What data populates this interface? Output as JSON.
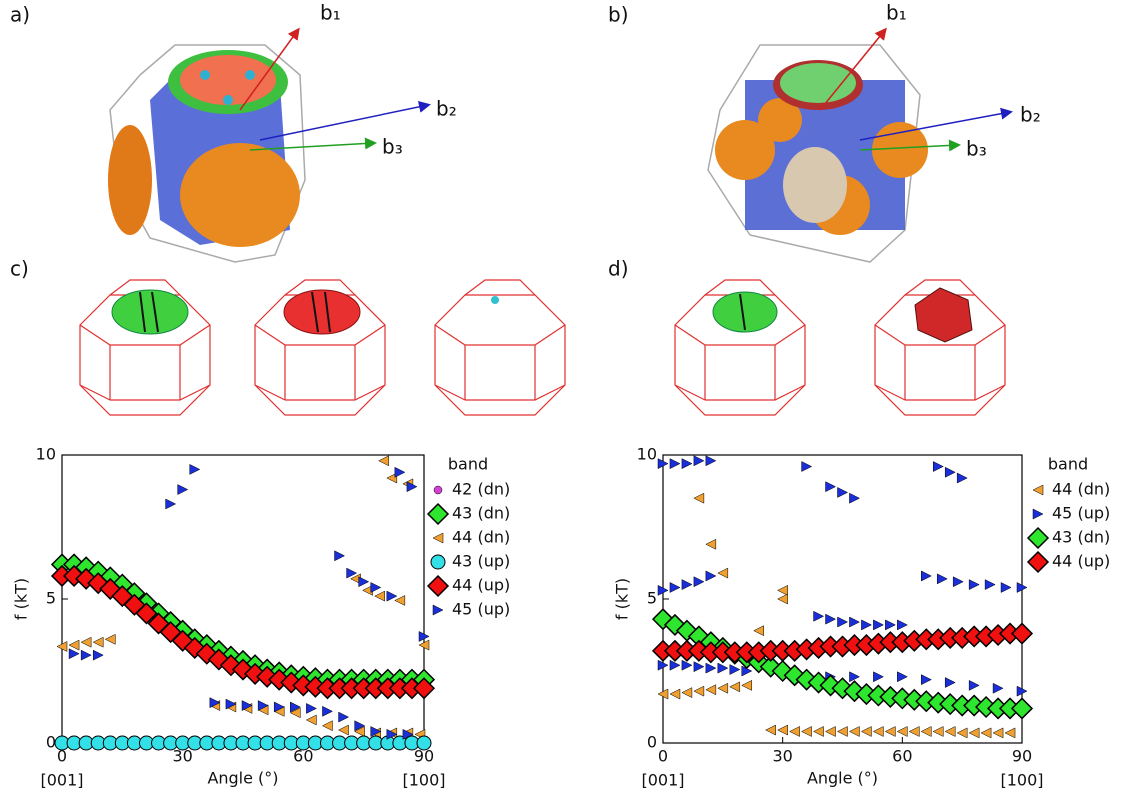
{
  "panel_labels": [
    "a)",
    "b)",
    "c)",
    "d)"
  ],
  "vector_labels": {
    "a": [
      "b₁",
      "b₂",
      "b₃"
    ],
    "b": [
      "b₁",
      "b₂",
      "b₃"
    ]
  },
  "chart_data": [
    {
      "type": "scatter",
      "xlabel": "Angle (°)",
      "ylabel": "f (kT)",
      "annotations": [
        "[001]",
        "[100]"
      ],
      "legend_title": "band",
      "xlim": [
        0,
        90
      ],
      "ylim": [
        0,
        10
      ],
      "xticks": [
        0,
        30,
        60,
        90
      ],
      "yticks": [
        0,
        5,
        10
      ],
      "series": [
        {
          "name": "42 (dn)",
          "color": "#d63fd6",
          "marker": "small-circle",
          "x": [],
          "values": []
        },
        {
          "name": "43 (dn)",
          "color": "#2ee62e",
          "marker": "diamond",
          "x": [
            0,
            3,
            6,
            9,
            12,
            15,
            18,
            21,
            24,
            27,
            30,
            33,
            36,
            39,
            42,
            45,
            48,
            51,
            54,
            57,
            60,
            63,
            66,
            69,
            72,
            75,
            78,
            81,
            84,
            87,
            90
          ],
          "values": [
            6.2,
            6.2,
            6.1,
            5.95,
            5.75,
            5.5,
            5.2,
            4.85,
            4.5,
            4.2,
            3.9,
            3.6,
            3.4,
            3.2,
            3.0,
            2.85,
            2.7,
            2.55,
            2.45,
            2.35,
            2.3,
            2.25,
            2.2,
            2.2,
            2.2,
            2.2,
            2.2,
            2.2,
            2.2,
            2.2,
            2.2
          ]
        },
        {
          "name": "44 (dn)",
          "color": "#f0a030",
          "marker": "triangle-left",
          "x": [
            0,
            3,
            6,
            9,
            12,
            73,
            76,
            79,
            84,
            80,
            82,
            86,
            90,
            38,
            42,
            46,
            50,
            54,
            58,
            62,
            66,
            70,
            74,
            78,
            82,
            86,
            89
          ],
          "values": [
            3.35,
            3.4,
            3.5,
            3.5,
            3.6,
            5.7,
            5.3,
            5.1,
            4.95,
            9.8,
            9.2,
            9.0,
            3.4,
            1.3,
            1.25,
            1.2,
            1.15,
            1.1,
            1.05,
            0.8,
            0.6,
            0.45,
            0.4,
            0.35,
            0.35,
            0.35,
            0.3
          ]
        },
        {
          "name": "43 (up)",
          "color": "#33e0e8",
          "marker": "circle",
          "x": [
            0,
            3,
            6,
            9,
            12,
            15,
            18,
            21,
            24,
            27,
            30,
            33,
            36,
            39,
            42,
            45,
            48,
            51,
            54,
            57,
            60,
            63,
            66,
            69,
            72,
            75,
            78,
            81,
            84,
            87,
            90
          ],
          "values": [
            0,
            0,
            0,
            0,
            0,
            0,
            0,
            0,
            0,
            0,
            0,
            0,
            0,
            0,
            0,
            0,
            0,
            0,
            0,
            0,
            0,
            0,
            0,
            0,
            0,
            0,
            0,
            0,
            0,
            0,
            0
          ]
        },
        {
          "name": "44 (up)",
          "color": "#f01010",
          "marker": "diamond",
          "x": [
            0,
            3,
            6,
            9,
            12,
            15,
            18,
            21,
            24,
            27,
            30,
            33,
            36,
            39,
            42,
            45,
            48,
            51,
            54,
            57,
            60,
            63,
            66,
            69,
            72,
            75,
            78,
            81,
            84,
            87,
            90
          ],
          "values": [
            5.8,
            5.8,
            5.7,
            5.55,
            5.35,
            5.1,
            4.8,
            4.5,
            4.15,
            3.85,
            3.55,
            3.3,
            3.1,
            2.9,
            2.7,
            2.55,
            2.4,
            2.3,
            2.2,
            2.1,
            2.0,
            1.95,
            1.9,
            1.9,
            1.9,
            1.9,
            1.9,
            1.9,
            1.9,
            1.9,
            1.9
          ]
        },
        {
          "name": "45 (up)",
          "color": "#1a2fd8",
          "marker": "triangle-right",
          "x": [
            3,
            6,
            9,
            27,
            30,
            33,
            69,
            72,
            75,
            78,
            82,
            84,
            87,
            38,
            42,
            46,
            50,
            54,
            58,
            62,
            66,
            70,
            74,
            78,
            82,
            86,
            90
          ],
          "values": [
            3.1,
            3.05,
            3.05,
            8.3,
            8.8,
            9.5,
            6.5,
            5.9,
            5.6,
            5.4,
            5.1,
            9.4,
            8.9,
            1.4,
            1.35,
            1.3,
            1.3,
            1.25,
            1.25,
            1.2,
            1.1,
            0.9,
            0.6,
            0.4,
            0.3,
            0.3,
            3.7
          ]
        }
      ]
    },
    {
      "type": "scatter",
      "xlabel": "Angle (°)",
      "ylabel": "f (kT)",
      "annotations": [
        "[001]",
        "[100]"
      ],
      "legend_title": "band",
      "xlim": [
        0,
        90
      ],
      "ylim": [
        0,
        10
      ],
      "xticks": [
        0,
        30,
        60,
        90
      ],
      "yticks": [
        0,
        5,
        10
      ],
      "series": [
        {
          "name": "44 (dn)",
          "color": "#f0a030",
          "marker": "triangle-left",
          "x": [
            0,
            3,
            6,
            9,
            12,
            15,
            18,
            21,
            9,
            12,
            15,
            30,
            30,
            24,
            27,
            30,
            33,
            36,
            39,
            42,
            45,
            48,
            51,
            54,
            57,
            60,
            63,
            66,
            69,
            72,
            75,
            78,
            81,
            84,
            87
          ],
          "values": [
            1.7,
            1.7,
            1.75,
            1.8,
            1.85,
            1.9,
            1.95,
            2.0,
            8.5,
            6.9,
            5.9,
            5.3,
            5.0,
            3.9,
            0.45,
            0.45,
            0.4,
            0.4,
            0.4,
            0.4,
            0.4,
            0.4,
            0.4,
            0.4,
            0.4,
            0.4,
            0.4,
            0.4,
            0.4,
            0.4,
            0.35,
            0.35,
            0.35,
            0.35,
            0.35
          ]
        },
        {
          "name": "45 (up)",
          "color": "#1a2fd8",
          "marker": "triangle-right",
          "x": [
            0,
            3,
            6,
            9,
            12,
            0,
            3,
            6,
            9,
            12,
            0,
            3,
            6,
            9,
            12,
            15,
            18,
            21,
            36,
            42,
            45,
            48,
            69,
            72,
            75,
            66,
            70,
            74,
            78,
            82,
            86,
            90,
            39,
            42,
            45,
            48,
            51,
            54,
            57,
            60,
            42,
            48,
            54,
            60,
            66,
            72,
            78,
            84,
            90
          ],
          "values": [
            9.7,
            9.7,
            9.7,
            9.8,
            9.8,
            5.3,
            5.4,
            5.5,
            5.6,
            5.8,
            2.7,
            2.7,
            2.7,
            2.65,
            2.6,
            2.6,
            2.55,
            2.5,
            9.6,
            8.9,
            8.7,
            8.5,
            9.6,
            9.4,
            9.2,
            5.8,
            5.7,
            5.6,
            5.5,
            5.5,
            5.4,
            5.4,
            4.4,
            4.3,
            4.2,
            4.2,
            4.1,
            4.1,
            4.1,
            4.1,
            2.3,
            2.3,
            2.3,
            2.3,
            2.2,
            2.1,
            2.0,
            1.9,
            1.8
          ]
        },
        {
          "name": "43 (dn)",
          "color": "#2ee62e",
          "marker": "diamond",
          "x": [
            0,
            3,
            6,
            9,
            12,
            15,
            18,
            21,
            24,
            27,
            30,
            33,
            36,
            39,
            42,
            45,
            48,
            51,
            54,
            57,
            60,
            63,
            66,
            69,
            72,
            75,
            78,
            81,
            84,
            87,
            90
          ],
          "values": [
            4.3,
            4.1,
            3.9,
            3.7,
            3.5,
            3.3,
            3.1,
            2.95,
            2.8,
            2.65,
            2.5,
            2.35,
            2.2,
            2.1,
            2.0,
            1.9,
            1.8,
            1.7,
            1.65,
            1.6,
            1.55,
            1.5,
            1.45,
            1.4,
            1.35,
            1.3,
            1.3,
            1.25,
            1.2,
            1.2,
            1.2
          ]
        },
        {
          "name": "44 (up)",
          "color": "#f01010",
          "marker": "diamond",
          "x": [
            0,
            3,
            6,
            9,
            12,
            15,
            18,
            21,
            24,
            27,
            30,
            33,
            36,
            39,
            42,
            45,
            48,
            51,
            54,
            57,
            60,
            63,
            66,
            69,
            72,
            75,
            78,
            81,
            84,
            87,
            90
          ],
          "values": [
            3.2,
            3.2,
            3.2,
            3.2,
            3.15,
            3.15,
            3.15,
            3.15,
            3.15,
            3.2,
            3.2,
            3.2,
            3.25,
            3.3,
            3.35,
            3.35,
            3.4,
            3.4,
            3.45,
            3.5,
            3.5,
            3.55,
            3.6,
            3.6,
            3.65,
            3.65,
            3.7,
            3.7,
            3.75,
            3.8,
            3.8
          ]
        }
      ]
    }
  ]
}
